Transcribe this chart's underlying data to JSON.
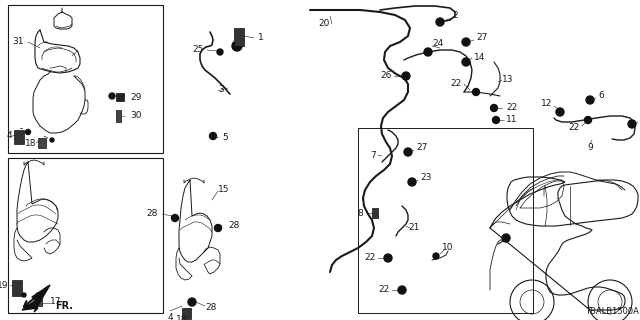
{
  "bg_color": "#ffffff",
  "diagram_code": "TBALB1500A",
  "figsize": [
    6.4,
    3.2
  ],
  "dpi": 100,
  "line_color": "#1a1a1a",
  "text_color": "#1a1a1a"
}
